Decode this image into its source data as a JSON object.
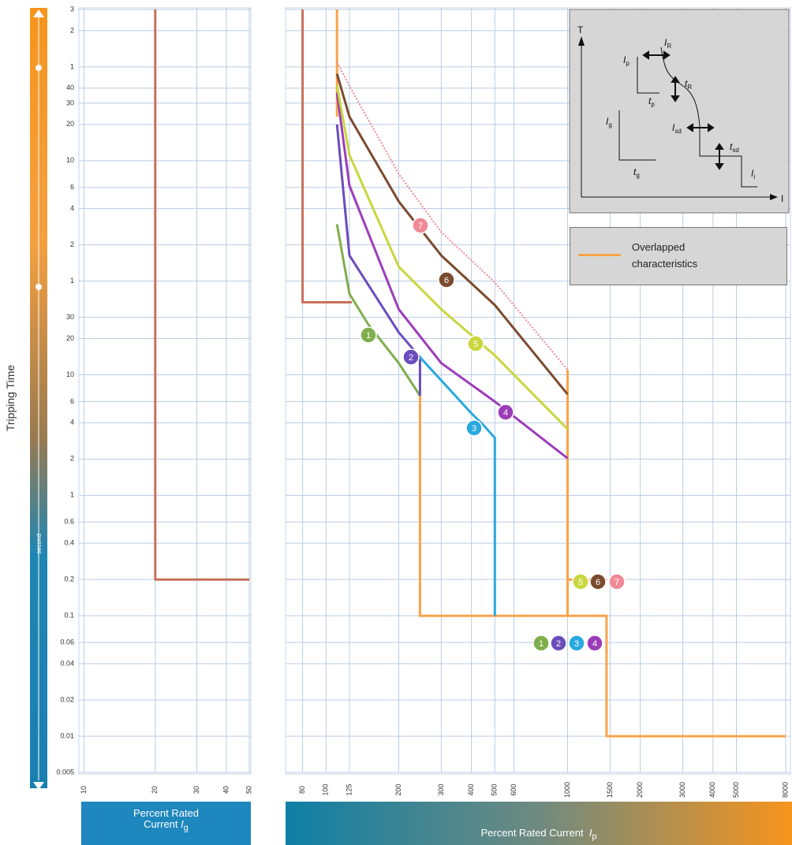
{
  "chart_data": [
    {
      "type": "line",
      "ylabel": "Tripping Time",
      "yunit": "second",
      "xlabel": "Percent Rated Current",
      "xlabel_symbol": "I",
      "xlabel_sub": "g",
      "xscale": "log",
      "yscale": "log",
      "xlim": [
        9.5,
        50
      ],
      "ylim": [
        0.005,
        10800
      ],
      "xticks": [
        10,
        20,
        30,
        40,
        50
      ],
      "yticks": [
        {
          "value": 10800,
          "label": "3"
        },
        {
          "value": 7200,
          "label": "2"
        },
        {
          "value": 3600,
          "label": "1"
        },
        {
          "value": 2400,
          "label": "40"
        },
        {
          "value": 1800,
          "label": "30"
        },
        {
          "value": 1200,
          "label": "20"
        },
        {
          "value": 600,
          "label": "10"
        },
        {
          "value": 360,
          "label": "6"
        },
        {
          "value": 240,
          "label": "4"
        },
        {
          "value": 120,
          "label": "2"
        },
        {
          "value": 60,
          "label": "1"
        },
        30,
        20,
        10,
        6,
        4,
        2,
        1,
        0.6,
        0.4,
        0.2,
        0.1,
        0.06,
        0.04,
        0.02,
        0.01,
        0.005
      ],
      "grid": true,
      "series": [
        {
          "color": "#c8705a",
          "x": [
            20,
            20,
            50
          ],
          "values": [
            10800,
            0.2,
            0.2
          ]
        }
      ]
    },
    {
      "type": "line",
      "xlabel": "Percent Rated Current",
      "xlabel_symbol": "I",
      "xlabel_sub": "p",
      "xscale": "log",
      "yscale": "log",
      "xlim": [
        68,
        8000
      ],
      "ylim": [
        0.005,
        10800
      ],
      "xticks": [
        80,
        100,
        125,
        200,
        300,
        400,
        500,
        600,
        1000,
        1500,
        2000,
        3000,
        4000,
        5000,
        8000
      ],
      "grid": true,
      "legend": "top-right",
      "series": [
        {
          "color": "#c8705a",
          "x": [
            80,
            80,
            128
          ],
          "values": [
            10800,
            40,
            40
          ]
        },
        {
          "name": "Overlapped characteristics",
          "color": "#f7a44a",
          "x": [
            111,
            111,
            null,
            245,
            245,
            1450,
            1450,
            8000,
            null,
            1000,
            1000,
            null,
            1000,
            1450
          ],
          "values": [
            10800,
            1390,
            null,
            6.7,
            0.1,
            0.1,
            0.01,
            0.01,
            null,
            11,
            0.1,
            null,
            0.2,
            0.2
          ]
        },
        {
          "name": "1",
          "color": "#7fae4c",
          "x": [
            111,
            125,
            150,
            200,
            245
          ],
          "values": [
            178,
            47,
            26,
            12.5,
            6.7
          ]
        },
        {
          "name": "2",
          "color": "#6a4cbc",
          "x": [
            111,
            125,
            200,
            245,
            245
          ],
          "values": [
            1200,
            98,
            22.5,
            14,
            6.7
          ]
        },
        {
          "name": "3",
          "color": "#29a9df",
          "x": [
            245,
            400,
            450,
            500,
            500
          ],
          "values": [
            14,
            4.8,
            3.8,
            3.0,
            0.1
          ]
        },
        {
          "name": "4",
          "color": "#9c3db8",
          "x": [
            111,
            125,
            200,
            300,
            500,
            1000
          ],
          "values": [
            2200,
            372,
            35,
            12.5,
            6,
            2.03
          ]
        },
        {
          "name": "5",
          "color": "#c9d63d",
          "x": [
            111,
            125,
            200,
            300,
            500,
            1000
          ],
          "values": [
            2530,
            670,
            79,
            35,
            14.5,
            3.55
          ]
        },
        {
          "name": "6",
          "color": "#7b4b2f",
          "x": [
            111,
            125,
            200,
            300,
            500,
            1000
          ],
          "values": [
            3160,
            1390,
            275,
            98,
            38,
            6.9
          ]
        },
        {
          "name": "7",
          "color": "#ee8a96",
          "dotted": true,
          "x": [
            111,
            125,
            200,
            300,
            500,
            1000
          ],
          "values": [
            3950,
            2500,
            465,
            153,
            58.5,
            11
          ]
        }
      ]
    }
  ],
  "inset": {
    "axis_t": "T",
    "axis_i": "I",
    "labels": [
      {
        "text": "I",
        "sub": "p"
      },
      {
        "text": "t",
        "sub": "p"
      },
      {
        "text": "I",
        "sub": "g"
      },
      {
        "text": "t",
        "sub": "g"
      },
      {
        "text": "I",
        "sub": "R"
      },
      {
        "text": "t",
        "sub": "R"
      },
      {
        "text": "I",
        "sub": "sd"
      },
      {
        "text": "t",
        "sub": "sd"
      },
      {
        "text": "I",
        "sub": "i"
      }
    ]
  }
}
